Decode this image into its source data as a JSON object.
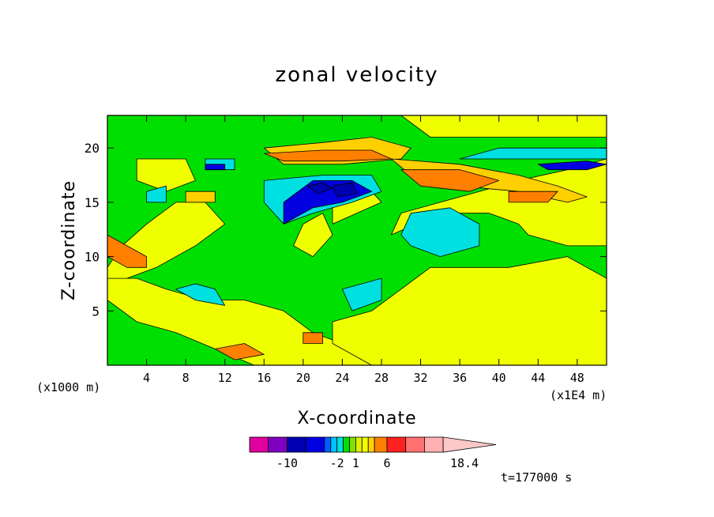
{
  "chart_data": {
    "type": "heatmap",
    "title": "zonal velocity",
    "xlabel": "X-coordinate",
    "ylabel": "Z-coordinate",
    "x_unit_left": "(x1000 m)",
    "x_unit_right": "(x1E4 m)",
    "xlim": [
      0,
      51
    ],
    "ylim": [
      0,
      23
    ],
    "x_ticks": [
      "4",
      "8",
      "12",
      "16",
      "20",
      "24",
      "28",
      "32",
      "36",
      "40",
      "44",
      "48"
    ],
    "y_ticks": [
      "5",
      "10",
      "15",
      "20"
    ],
    "time_label": "t=177000 s",
    "colorbar": {
      "tick_labels": [
        "-10",
        "-2",
        "1",
        "6",
        "18.4"
      ],
      "tick_values": [
        -10,
        -2,
        1,
        6,
        18.4
      ],
      "levels": [
        -16,
        -13,
        -10,
        -7,
        -4,
        -3,
        -2,
        -1,
        0,
        1,
        2,
        3,
        4,
        6,
        9,
        12,
        15,
        18.4
      ],
      "colors": [
        "#e000a0",
        "#8000c0",
        "#0000b0",
        "#0000e0",
        "#0060ff",
        "#00c0ff",
        "#00e0e0",
        "#00e000",
        "#80e000",
        "#e0f000",
        "#f0ff00",
        "#ffd000",
        "#ff8000",
        "#ff2020",
        "#ff7070",
        "#ffb0b0",
        "#ffc8c8"
      ]
    },
    "regions": [
      {
        "value": 0.5,
        "color": "#f0ff00",
        "shape": [
          [
            9,
            23
          ],
          [
            30,
            23
          ],
          [
            33,
            21
          ],
          [
            51,
            21
          ],
          [
            51,
            23
          ]
        ]
      },
      {
        "value": 0.5,
        "color": "#f0ff00",
        "shape": [
          [
            0,
            9
          ],
          [
            1.5,
            11
          ],
          [
            4,
            13
          ],
          [
            7,
            15
          ],
          [
            10,
            15
          ],
          [
            12,
            13
          ],
          [
            9,
            11
          ],
          [
            5,
            9
          ],
          [
            2,
            8
          ],
          [
            0,
            7
          ]
        ]
      },
      {
        "value": 0.5,
        "color": "#f0ff00",
        "shape": [
          [
            0,
            6
          ],
          [
            3,
            4
          ],
          [
            7,
            3
          ],
          [
            11,
            1.5
          ],
          [
            15,
            0
          ],
          [
            27,
            0
          ],
          [
            27,
            1
          ],
          [
            24,
            2
          ],
          [
            21,
            3
          ],
          [
            18,
            5
          ],
          [
            14,
            6
          ],
          [
            10,
            6
          ],
          [
            6,
            7
          ],
          [
            3,
            8
          ],
          [
            0,
            8
          ]
        ]
      },
      {
        "value": 0.5,
        "color": "#f0ff00",
        "shape": [
          [
            27,
            0
          ],
          [
            51,
            0
          ],
          [
            51,
            8
          ],
          [
            47,
            10
          ],
          [
            41,
            9
          ],
          [
            38,
            9
          ],
          [
            33,
            9
          ],
          [
            30,
            7
          ],
          [
            27,
            5
          ],
          [
            23,
            4
          ],
          [
            23,
            2
          ]
        ]
      },
      {
        "value": 0.5,
        "color": "#f0ff00",
        "shape": [
          [
            29,
            12
          ],
          [
            34,
            14
          ],
          [
            39,
            14
          ],
          [
            42,
            13
          ],
          [
            43,
            12
          ],
          [
            47,
            11
          ],
          [
            51,
            11
          ],
          [
            51,
            19
          ],
          [
            47,
            18
          ],
          [
            42,
            17
          ],
          [
            38,
            16
          ],
          [
            34,
            15
          ],
          [
            30,
            14
          ]
        ]
      },
      {
        "value": 0.5,
        "color": "#f0ff00",
        "shape": [
          [
            21,
            10
          ],
          [
            23,
            12
          ],
          [
            22,
            14
          ],
          [
            20,
            13
          ],
          [
            19,
            11
          ]
        ]
      },
      {
        "value": 0.5,
        "color": "#f0ff00",
        "shape": [
          [
            23,
            13
          ],
          [
            28,
            15
          ],
          [
            27,
            16
          ],
          [
            23,
            15
          ]
        ]
      },
      {
        "value": 0.5,
        "color": "#f0ff00",
        "shape": [
          [
            3,
            19
          ],
          [
            8,
            19
          ],
          [
            9,
            17
          ],
          [
            6,
            16
          ],
          [
            3,
            17
          ]
        ]
      },
      {
        "value": 3.0,
        "color": "#ffd000",
        "shape": [
          [
            16,
            20
          ],
          [
            22,
            20.5
          ],
          [
            27,
            21
          ],
          [
            31,
            20
          ],
          [
            30,
            19
          ],
          [
            24,
            18.5
          ],
          [
            18,
            18.5
          ]
        ]
      },
      {
        "value": 3.0,
        "color": "#ffd000",
        "shape": [
          [
            29,
            19
          ],
          [
            36,
            18.5
          ],
          [
            42,
            17.5
          ],
          [
            46,
            16.5
          ],
          [
            49,
            15.5
          ],
          [
            47,
            15
          ],
          [
            42,
            16
          ],
          [
            36,
            16.5
          ],
          [
            31,
            17.5
          ]
        ]
      },
      {
        "value": 3.0,
        "color": "#ffd000",
        "shape": [
          [
            8,
            16
          ],
          [
            11,
            16
          ],
          [
            11,
            15
          ],
          [
            8,
            15
          ]
        ]
      },
      {
        "value": 4.0,
        "color": "#ff8000",
        "shape": [
          [
            0,
            12
          ],
          [
            2,
            11
          ],
          [
            4,
            10
          ],
          [
            4,
            9
          ],
          [
            2,
            9
          ],
          [
            0,
            10
          ]
        ]
      },
      {
        "value": 4.0,
        "color": "#ff8000",
        "shape": [
          [
            16,
            19.5
          ],
          [
            22,
            19.8
          ],
          [
            27,
            19.8
          ],
          [
            29,
            19
          ],
          [
            24,
            18.8
          ],
          [
            18,
            18.8
          ]
        ]
      },
      {
        "value": 4.0,
        "color": "#ff8000",
        "shape": [
          [
            30,
            18
          ],
          [
            36,
            18
          ],
          [
            40,
            17
          ],
          [
            37,
            16
          ],
          [
            32,
            16.5
          ]
        ]
      },
      {
        "value": 4.0,
        "color": "#ff8000",
        "shape": [
          [
            41,
            16
          ],
          [
            46,
            16
          ],
          [
            45,
            15
          ],
          [
            41,
            15
          ]
        ]
      },
      {
        "value": 4.0,
        "color": "#ff8000",
        "shape": [
          [
            20,
            3
          ],
          [
            22,
            3
          ],
          [
            22,
            2
          ],
          [
            20,
            2
          ]
        ]
      },
      {
        "value": 4.0,
        "color": "#ff8000",
        "shape": [
          [
            11,
            1.5
          ],
          [
            14,
            2
          ],
          [
            16,
            1
          ],
          [
            13,
            0.5
          ]
        ]
      },
      {
        "value": -1.5,
        "color": "#00e0e0",
        "shape": [
          [
            16,
            17
          ],
          [
            22,
            17.5
          ],
          [
            27,
            17.5
          ],
          [
            28,
            16
          ],
          [
            25,
            15
          ],
          [
            21,
            14
          ],
          [
            18,
            13
          ],
          [
            16,
            15
          ]
        ]
      },
      {
        "value": -1.5,
        "color": "#00e0e0",
        "shape": [
          [
            31,
            14
          ],
          [
            35,
            14.5
          ],
          [
            38,
            13
          ],
          [
            38,
            11
          ],
          [
            34,
            10
          ],
          [
            31,
            11
          ],
          [
            30,
            12
          ]
        ]
      },
      {
        "value": -1.5,
        "color": "#00e0e0",
        "shape": [
          [
            36,
            19
          ],
          [
            42,
            19
          ],
          [
            48,
            19
          ],
          [
            51,
            19
          ],
          [
            51,
            20
          ],
          [
            46,
            20
          ],
          [
            40,
            20
          ]
        ]
      },
      {
        "value": -1.5,
        "color": "#00e0e0",
        "shape": [
          [
            4,
            16
          ],
          [
            6,
            16.5
          ],
          [
            6,
            15
          ],
          [
            4,
            15
          ]
        ]
      },
      {
        "value": -1.5,
        "color": "#00e0e0",
        "shape": [
          [
            7,
            7
          ],
          [
            9,
            6
          ],
          [
            12,
            5.5
          ],
          [
            11,
            7
          ],
          [
            9,
            7.5
          ]
        ]
      },
      {
        "value": -1.5,
        "color": "#00e0e0",
        "shape": [
          [
            24,
            7
          ],
          [
            28,
            8
          ],
          [
            28,
            6
          ],
          [
            25,
            5
          ]
        ]
      },
      {
        "value": -1.5,
        "color": "#00e0e0",
        "shape": [
          [
            10,
            19
          ],
          [
            13,
            19
          ],
          [
            13,
            18
          ],
          [
            10,
            18
          ]
        ]
      },
      {
        "value": -7.0,
        "color": "#0000e0",
        "shape": [
          [
            18,
            15
          ],
          [
            21,
            17
          ],
          [
            25,
            17
          ],
          [
            27,
            16
          ],
          [
            24,
            15
          ],
          [
            21,
            14.5
          ],
          [
            18,
            13
          ]
        ]
      },
      {
        "value": -7.0,
        "color": "#0000e0",
        "shape": [
          [
            44,
            18.5
          ],
          [
            49,
            18.8
          ],
          [
            51,
            18.5
          ],
          [
            49,
            18
          ],
          [
            45,
            18
          ]
        ]
      },
      {
        "value": -7.0,
        "color": "#0000e0",
        "shape": [
          [
            10,
            18.5
          ],
          [
            12,
            18.5
          ],
          [
            12,
            18
          ],
          [
            10,
            18
          ]
        ]
      },
      {
        "value": -10.0,
        "color": "#0000b0",
        "shape": [
          [
            20.5,
            16.5
          ],
          [
            22,
            16.8
          ],
          [
            23,
            16.3
          ],
          [
            21.5,
            15.8
          ]
        ]
      },
      {
        "value": -10.0,
        "color": "#0000b0",
        "shape": [
          [
            23,
            16.5
          ],
          [
            25,
            16.8
          ],
          [
            25.5,
            15.8
          ],
          [
            23.5,
            15.5
          ]
        ]
      }
    ]
  }
}
